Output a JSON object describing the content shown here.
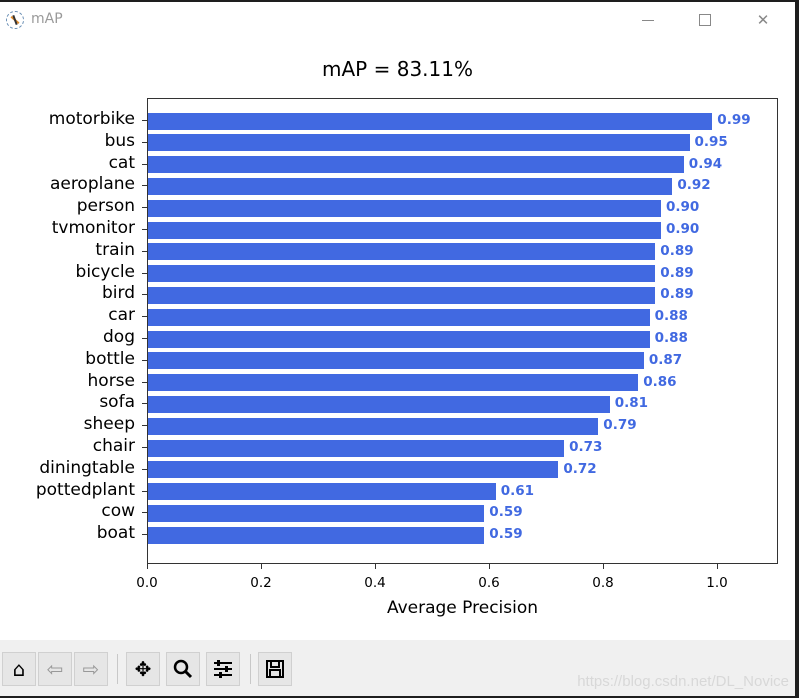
{
  "window": {
    "title": "mAP",
    "controls": {
      "minimize": "minimize",
      "maximize": "maximize",
      "close": "close"
    }
  },
  "toolbar": {
    "buttons": [
      {
        "name": "home",
        "glyph": "⌂"
      },
      {
        "name": "back",
        "glyph": "⇦"
      },
      {
        "name": "forward",
        "glyph": "⇨"
      },
      {
        "name": "pan",
        "glyph": "✥"
      },
      {
        "name": "zoom",
        "glyph": "🔍"
      },
      {
        "name": "configure-subplots",
        "glyph": "☰"
      },
      {
        "name": "save",
        "glyph": "💾"
      }
    ],
    "watermark": "https://blog.csdn.net/DL_Novice"
  },
  "chart_data": {
    "type": "bar",
    "orientation": "horizontal",
    "title": "mAP = 83.11%",
    "xlabel": "Average Precision",
    "ylabel": "",
    "xlim": [
      0,
      1.1
    ],
    "xticks": [
      "0.0",
      "0.2",
      "0.4",
      "0.6",
      "0.8",
      "1.0"
    ],
    "bar_color": "#4169e1",
    "label_color": "#4169e1",
    "grid": false,
    "legend": null,
    "categories": [
      "motorbike",
      "bus",
      "cat",
      "aeroplane",
      "person",
      "tvmonitor",
      "train",
      "bicycle",
      "bird",
      "car",
      "dog",
      "bottle",
      "horse",
      "sofa",
      "sheep",
      "chair",
      "diningtable",
      "pottedplant",
      "cow",
      "boat"
    ],
    "values": [
      0.99,
      0.95,
      0.94,
      0.92,
      0.9,
      0.9,
      0.89,
      0.89,
      0.89,
      0.88,
      0.88,
      0.87,
      0.86,
      0.81,
      0.79,
      0.73,
      0.72,
      0.61,
      0.59,
      0.59
    ],
    "value_labels": [
      "0.99",
      "0.95",
      "0.94",
      "0.92",
      "0.90",
      "0.90",
      "0.89",
      "0.89",
      "0.89",
      "0.88",
      "0.88",
      "0.87",
      "0.86",
      "0.81",
      "0.79",
      "0.73",
      "0.72",
      "0.61",
      "0.59",
      "0.59"
    ]
  }
}
